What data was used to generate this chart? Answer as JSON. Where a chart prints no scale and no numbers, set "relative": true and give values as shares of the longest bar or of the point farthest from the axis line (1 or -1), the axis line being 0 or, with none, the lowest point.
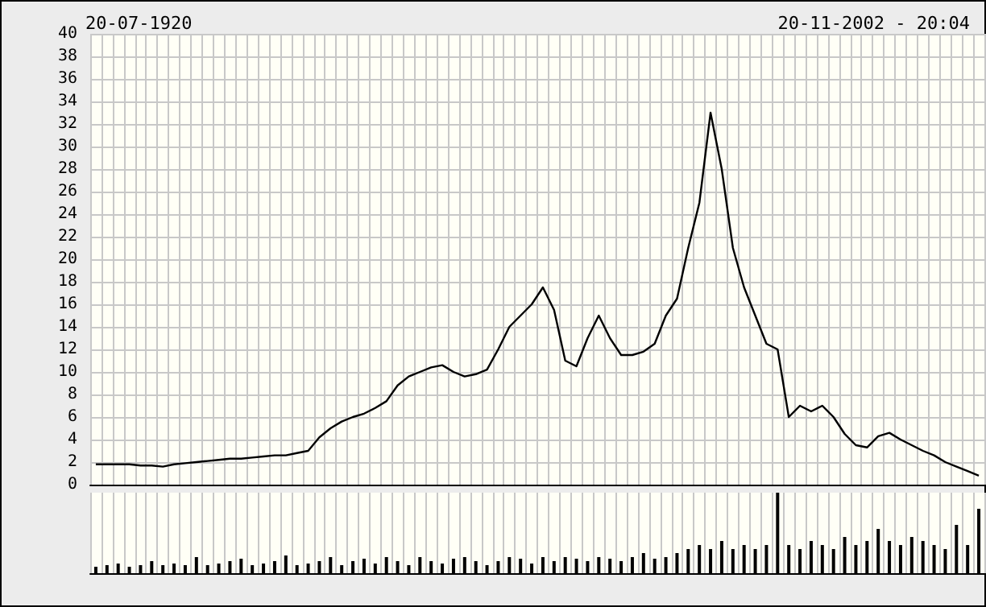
{
  "chart_data": [
    {
      "type": "line",
      "title": "20-07-1920",
      "subtitle": "20-11-2002 - 20:04",
      "categories": [
        null,
        null,
        null,
        null,
        null,
        null,
        null,
        null,
        null,
        null,
        null,
        null,
        null,
        null,
        null,
        null,
        null,
        null,
        null,
        null,
        null,
        null,
        null,
        null,
        null,
        null,
        null,
        null,
        null,
        null,
        null,
        null,
        null,
        null,
        null,
        null,
        null,
        null,
        null,
        null,
        null,
        null,
        null,
        null,
        null,
        null,
        null,
        null,
        null,
        null,
        null,
        null,
        null,
        null,
        null,
        null,
        null,
        null,
        null,
        null,
        null,
        null,
        null,
        null,
        null,
        null,
        null,
        null,
        null,
        null,
        null,
        null,
        null,
        null,
        null,
        null,
        null,
        null,
        null,
        null
      ],
      "values": [
        1.8,
        1.8,
        1.8,
        1.8,
        1.7,
        1.7,
        1.6,
        1.8,
        1.9,
        2.0,
        2.1,
        2.2,
        2.3,
        2.3,
        2.4,
        2.5,
        2.6,
        2.6,
        2.8,
        3.0,
        4.2,
        5.0,
        5.6,
        6.0,
        6.3,
        6.8,
        7.4,
        8.8,
        9.6,
        10.0,
        10.4,
        10.6,
        10.0,
        9.6,
        9.8,
        10.2,
        12.0,
        14.0,
        15.0,
        16.0,
        17.5,
        15.5,
        11.0,
        10.5,
        13.0,
        15.0,
        13.0,
        11.5,
        11.5,
        11.8,
        12.5,
        15.0,
        16.5,
        21.0,
        25.0,
        33.0,
        28.0,
        21.0,
        17.5,
        15.0,
        12.5,
        12.0,
        6.0,
        7.0,
        6.5,
        7.0,
        6.0,
        4.5,
        3.5,
        3.3,
        4.3,
        4.6,
        4.0,
        3.5,
        3.0,
        2.6,
        2.0,
        1.6,
        1.2,
        0.8
      ],
      "color": "#000000",
      "ylim": [
        0,
        40
      ],
      "yticks": [
        0,
        2,
        4,
        6,
        8,
        10,
        12,
        14,
        16,
        18,
        20,
        22,
        24,
        26,
        28,
        30,
        32,
        34,
        36,
        38,
        40
      ],
      "grid": true,
      "tick_labels": "y"
    },
    {
      "type": "bar",
      "relative": true,
      "categories": [
        null,
        null,
        null,
        null,
        null,
        null,
        null,
        null,
        null,
        null,
        null,
        null,
        null,
        null,
        null,
        null,
        null,
        null,
        null,
        null,
        null,
        null,
        null,
        null,
        null,
        null,
        null,
        null,
        null,
        null,
        null,
        null,
        null,
        null,
        null,
        null,
        null,
        null,
        null,
        null,
        null,
        null,
        null,
        null,
        null,
        null,
        null,
        null,
        null,
        null,
        null,
        null,
        null,
        null,
        null,
        null,
        null,
        null,
        null,
        null,
        null,
        null,
        null,
        null,
        null,
        null,
        null,
        null,
        null,
        null,
        null,
        null,
        null,
        null,
        null,
        null,
        null,
        null,
        null,
        null
      ],
      "values": [
        0.08,
        0.1,
        0.12,
        0.08,
        0.1,
        0.15,
        0.1,
        0.12,
        0.1,
        0.2,
        0.1,
        0.12,
        0.15,
        0.18,
        0.1,
        0.12,
        0.15,
        0.22,
        0.1,
        0.12,
        0.15,
        0.2,
        0.1,
        0.15,
        0.18,
        0.12,
        0.2,
        0.15,
        0.1,
        0.2,
        0.15,
        0.12,
        0.18,
        0.2,
        0.15,
        0.1,
        0.15,
        0.2,
        0.18,
        0.12,
        0.2,
        0.15,
        0.2,
        0.18,
        0.15,
        0.2,
        0.18,
        0.15,
        0.2,
        0.25,
        0.18,
        0.2,
        0.25,
        0.3,
        0.35,
        0.3,
        0.4,
        0.3,
        0.35,
        0.3,
        0.35,
        1.0,
        0.35,
        0.3,
        0.4,
        0.35,
        0.3,
        0.45,
        0.35,
        0.4,
        0.55,
        0.4,
        0.35,
        0.45,
        0.4,
        0.35,
        0.3,
        0.6,
        0.35,
        0.8
      ],
      "color": "#000000",
      "grid": "x",
      "tick_labels": false
    }
  ]
}
